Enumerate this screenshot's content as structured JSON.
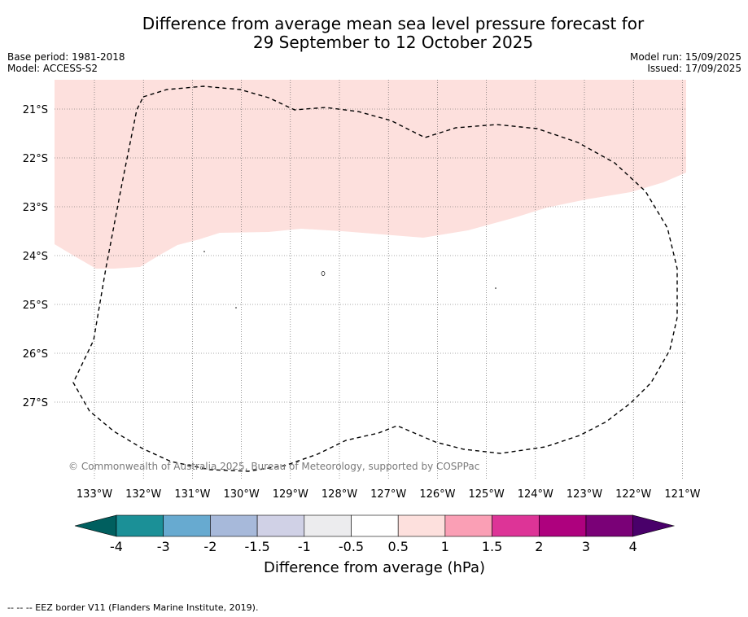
{
  "title": {
    "line1": "Difference from average mean sea level pressure forecast for",
    "line2": "29 September to 12 October 2025"
  },
  "meta": {
    "base_period": "Base period: 1981-2018",
    "model": "Model: ACCESS-S2",
    "model_run": "Model run: 15/09/2025",
    "issued": "Issued: 17/09/2025"
  },
  "map": {
    "lon_labels": [
      "133°W",
      "132°W",
      "131°W",
      "130°W",
      "129°W",
      "128°W",
      "127°W",
      "126°W",
      "125°W",
      "124°W",
      "123°W",
      "122°W",
      "121°W"
    ],
    "lat_labels": [
      "21°S",
      "22°S",
      "23°S",
      "24°S",
      "25°S",
      "26°S",
      "27°S"
    ],
    "copyright": "© Commonwealth of Australia 2025, Bureau of Meteorology, supported by COSPPac",
    "anomaly_fill_color": "#fde0dd",
    "eez_line_color": "#000000"
  },
  "legend": {
    "ticks": [
      "-4",
      "-3",
      "-2",
      "-1.5",
      "-1",
      "-0.5",
      "0.5",
      "1",
      "1.5",
      "2",
      "3",
      "4"
    ],
    "colors": [
      "#005f5f",
      "#1b9097",
      "#67aad0",
      "#a7b9da",
      "#d0d1e6",
      "#ececee",
      "#ffffff",
      "#fde0dd",
      "#fa9fb5",
      "#dd3497",
      "#ae017e",
      "#7a0177",
      "#49006a"
    ],
    "label": "Difference from average (hPa)"
  },
  "footer": {
    "eez_note": "--  --  -- EEZ border V11 (Flanders Marine Institute, 2019)."
  }
}
